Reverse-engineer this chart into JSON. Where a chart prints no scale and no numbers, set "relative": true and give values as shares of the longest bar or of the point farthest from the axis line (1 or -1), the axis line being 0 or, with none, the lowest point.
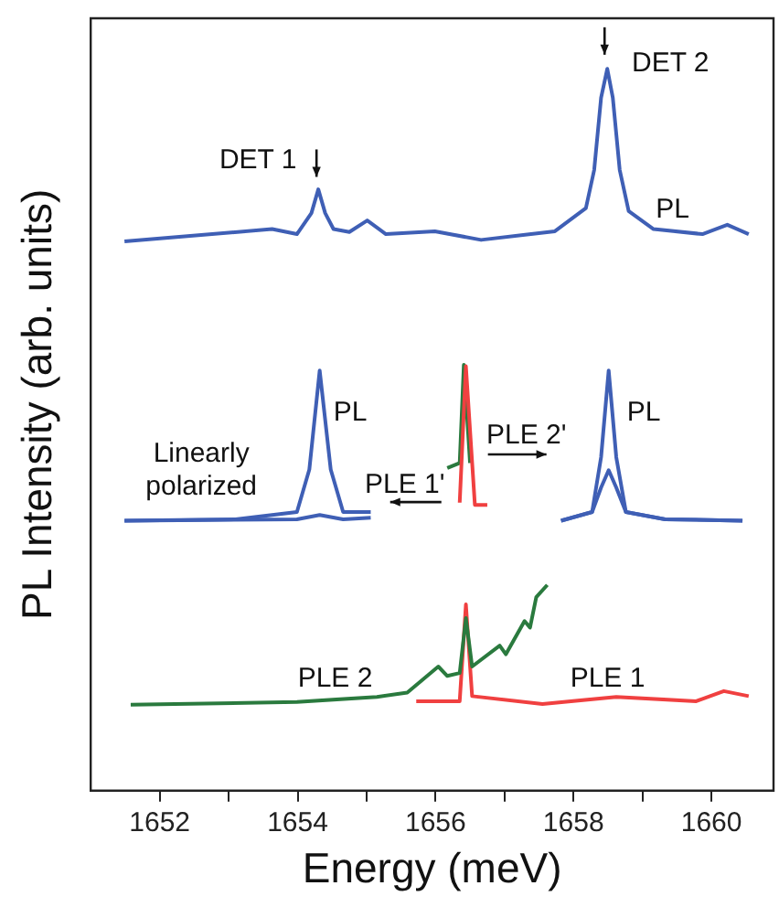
{
  "chart_data": {
    "type": "line",
    "relative": true,
    "xlabel": "Energy (meV)",
    "ylabel": "PL Intensity (arb. units)",
    "xlim": [
      1651,
      1660.9
    ],
    "xticks": [
      1652,
      {
        "value": 1653,
        "label": null
      },
      1654,
      {
        "value": 1655,
        "label": null
      },
      1656,
      {
        "value": 1657,
        "label": null
      },
      1658,
      {
        "value": 1659,
        "label": null
      },
      1660
    ],
    "legend": false,
    "series": [
      {
        "color": "#3f5fb5",
        "x": [
          1651.49,
          1653.63,
          1653.99,
          1654.2,
          1654.3,
          1654.4,
          1654.52,
          1654.75,
          1655.01,
          1655.28,
          1655.99,
          1656.66,
          1657.73,
          1658.18,
          1658.3,
          1658.4,
          1658.49,
          1658.57,
          1658.67,
          1658.8,
          1659.16,
          1659.87,
          1660.23,
          1660.54
        ],
        "values": [
          0.761,
          0.778,
          0.771,
          0.8,
          0.833,
          0.8,
          0.778,
          0.774,
          0.79,
          0.771,
          0.775,
          0.763,
          0.775,
          0.807,
          0.86,
          0.96,
          1.0,
          0.96,
          0.86,
          0.803,
          0.778,
          0.771,
          0.784,
          0.771
        ]
      },
      {
        "color": "#3f5fb5",
        "x": [
          1651.49,
          1653.1,
          1653.99,
          1654.17,
          1654.32,
          1654.48,
          1654.66,
          1655.06
        ],
        "values": [
          0.374,
          0.376,
          0.386,
          0.445,
          0.582,
          0.445,
          0.386,
          0.386
        ]
      },
      {
        "color": "#3f5fb5",
        "x": [
          1651.49,
          1653.99,
          1654.32,
          1654.66,
          1655.06
        ],
        "values": [
          0.374,
          0.376,
          0.382,
          0.376,
          0.378
        ]
      },
      {
        "color": "#3f5fb5",
        "x": [
          1657.82,
          1658.27,
          1658.4,
          1658.51,
          1658.62,
          1658.76,
          1659.33,
          1660.45
        ],
        "values": [
          0.374,
          0.386,
          0.462,
          0.582,
          0.462,
          0.386,
          0.376,
          0.374
        ]
      },
      {
        "color": "#3f5fb5",
        "x": [
          1657.82,
          1658.27,
          1658.4,
          1658.51,
          1658.62,
          1658.76,
          1659.33,
          1660.45
        ],
        "values": [
          0.374,
          0.386,
          0.42,
          0.444,
          0.42,
          0.386,
          0.376,
          0.374
        ]
      },
      {
        "color": "#f04040",
        "x": [
          1656.35,
          1656.44,
          1656.57,
          1656.75
        ],
        "values": [
          0.399,
          0.588,
          0.396,
          0.396
        ]
      },
      {
        "color": "#2a7a3e",
        "x": [
          1656.17,
          1656.35,
          1656.41,
          1656.5
        ],
        "values": [
          0.447,
          0.454,
          0.59,
          0.454
        ]
      },
      {
        "color": "#2a7a3e",
        "x": [
          1651.58,
          1653.99,
          1655.15,
          1655.59,
          1656.04,
          1656.17,
          1656.35,
          1656.44,
          1656.53,
          1656.93,
          1657.02,
          1657.29,
          1657.37,
          1657.46,
          1657.62
        ],
        "values": [
          0.119,
          0.123,
          0.13,
          0.136,
          0.172,
          0.159,
          0.163,
          0.239,
          0.172,
          0.201,
          0.189,
          0.235,
          0.226,
          0.268,
          0.285
        ]
      },
      {
        "color": "#f04040",
        "x": [
          1655.72,
          1656.35,
          1656.44,
          1656.53,
          1657.55,
          1658.62,
          1659.78,
          1660.18,
          1660.54
        ],
        "values": [
          0.124,
          0.124,
          0.258,
          0.131,
          0.12,
          0.13,
          0.124,
          0.138,
          0.131
        ]
      }
    ],
    "annotations": [
      "DET 1",
      "DET 2",
      "PL",
      "PL",
      "PL",
      "Linearly polarized",
      "PLE 1'",
      "PLE 2'",
      "PLE 2",
      "PLE 1"
    ]
  }
}
